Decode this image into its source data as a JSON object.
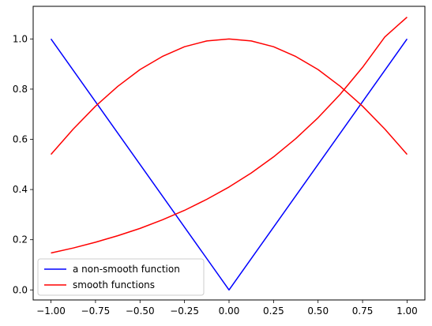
{
  "chart_data": {
    "type": "line",
    "title": "",
    "xlabel": "",
    "ylabel": "",
    "xlim": [
      -1.1,
      1.1
    ],
    "ylim": [
      -0.04,
      1.13
    ],
    "xticks": [
      -1.0,
      -0.75,
      -0.5,
      -0.25,
      0.0,
      0.25,
      0.5,
      0.75,
      1.0
    ],
    "xtick_labels": [
      "−1.00",
      "−0.75",
      "−0.50",
      "−0.25",
      "0.00",
      "0.25",
      "0.50",
      "0.75",
      "1.00"
    ],
    "yticks": [
      0.0,
      0.2,
      0.4,
      0.6,
      0.8,
      1.0
    ],
    "ytick_labels": [
      "0.0",
      "0.2",
      "0.4",
      "0.6",
      "0.8",
      "1.0"
    ],
    "grid": false,
    "legend_position": "lower-left",
    "series": [
      {
        "name": "a non-smooth function",
        "color": "#0000ff",
        "x": [
          -1.0,
          -0.75,
          -0.5,
          -0.25,
          0.0,
          0.25,
          0.5,
          0.75,
          1.0
        ],
        "y": [
          1.0,
          0.75,
          0.5,
          0.25,
          0.0,
          0.25,
          0.5,
          0.75,
          1.0
        ]
      },
      {
        "name": "smooth functions",
        "color": "#ff0000",
        "x": [
          -1.0,
          -0.875,
          -0.75,
          -0.625,
          -0.5,
          -0.375,
          -0.25,
          -0.125,
          0.0,
          0.125,
          0.25,
          0.375,
          0.5,
          0.625,
          0.75,
          0.875,
          1.0
        ],
        "y": [
          0.54,
          0.641,
          0.732,
          0.811,
          0.878,
          0.93,
          0.969,
          0.992,
          1.0,
          0.992,
          0.969,
          0.93,
          0.878,
          0.811,
          0.732,
          0.641,
          0.54
        ]
      },
      {
        "name": "",
        "color": "#ff0000",
        "x": [
          -1.0,
          -0.875,
          -0.75,
          -0.625,
          -0.5,
          -0.375,
          -0.25,
          -0.125,
          0.0,
          0.125,
          0.25,
          0.375,
          0.5,
          0.625,
          0.75,
          0.875,
          1.0
        ],
        "y": [
          0.147,
          0.167,
          0.19,
          0.216,
          0.245,
          0.279,
          0.317,
          0.361,
          0.41,
          0.466,
          0.53,
          0.603,
          0.686,
          0.78,
          0.887,
          1.008,
          1.087
        ]
      }
    ]
  }
}
